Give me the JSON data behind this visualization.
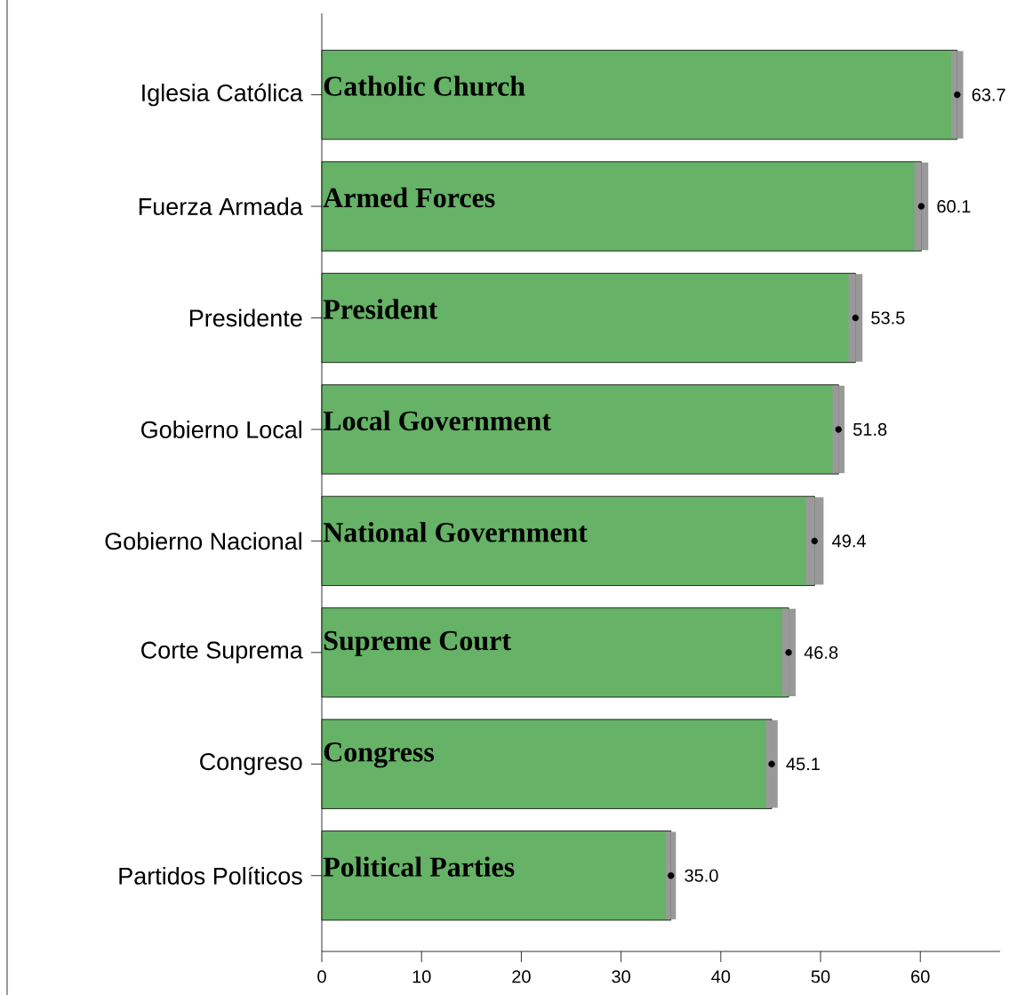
{
  "chart_data": {
    "type": "bar",
    "orientation": "horizontal",
    "categories": [
      "Iglesia Católica",
      "Fuerza Armada",
      "Presidente",
      "Gobierno Local",
      "Gobierno Nacional",
      "Corte Suprema",
      "Congreso",
      "Partidos Políticos"
    ],
    "series": [
      {
        "color": "#66b266",
        "values": [
          63.7,
          60.1,
          53.5,
          51.8,
          49.4,
          46.8,
          45.1,
          35.0
        ],
        "errors": [
          0.6,
          0.7,
          0.7,
          0.6,
          0.9,
          0.7,
          0.6,
          0.5
        ],
        "value_labels": [
          "63.7",
          "60.1",
          "53.5",
          "51.8",
          "49.4",
          "46.8",
          "45.1",
          "35.0"
        ]
      },
      {
        "type": "scatter",
        "color": "#000000",
        "marker": "circle",
        "x": [
          "Iglesia Católica",
          "Fuerza Armada",
          "Presidente",
          "Gobierno Local",
          "Gobierno Nacional",
          "Corte Suprema",
          "Congreso",
          "Partidos Políticos"
        ],
        "values": [
          63.7,
          60.1,
          53.5,
          51.8,
          49.4,
          46.8,
          45.1,
          35.0
        ]
      }
    ],
    "annotations": [
      {
        "text": "Catholic Church",
        "y": "Iglesia Católica"
      },
      {
        "text": "Armed Forces",
        "y": "Fuerza Armada"
      },
      {
        "text": "President",
        "y": "Presidente"
      },
      {
        "text": "Local Government",
        "y": "Gobierno Local"
      },
      {
        "text": "National Government",
        "y": "Gobierno Nacional"
      },
      {
        "text": "Supreme Court",
        "y": "Corte Suprema"
      },
      {
        "text": "Congress",
        "y": "Congreso"
      },
      {
        "text": "Political Parties",
        "y": "Partidos Políticos"
      }
    ],
    "xlim": [
      0,
      68
    ],
    "xticks": [
      0,
      10,
      20,
      30,
      40,
      50,
      60
    ],
    "grid": false
  }
}
